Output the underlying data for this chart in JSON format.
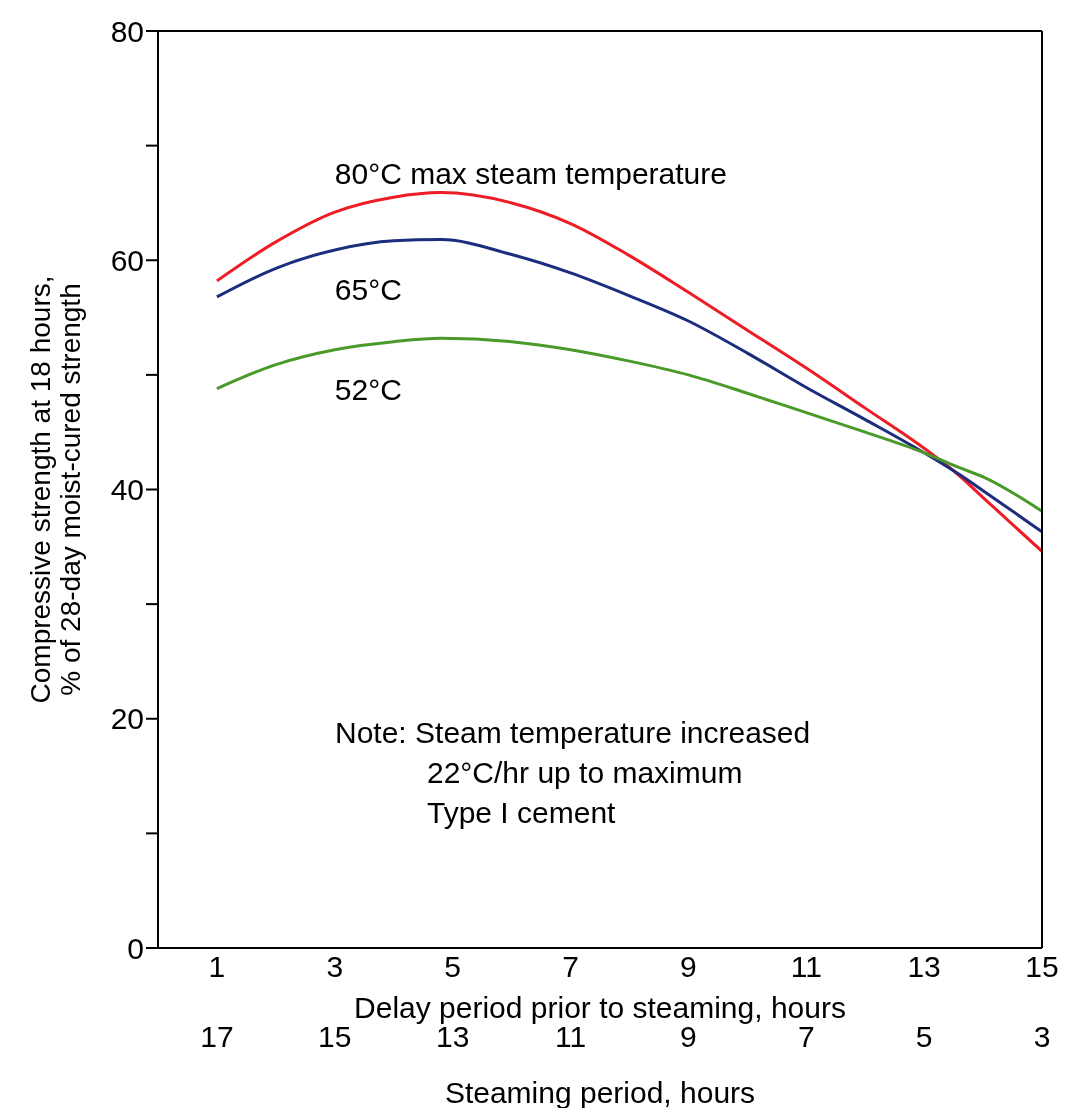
{
  "chart_data": {
    "type": "line",
    "xlabel": "Delay period prior to steaming, hours",
    "ylabel": "Compressive strength at 18 hours,\n% of 28-day moist-cured strength",
    "x2label": "Steaming period, hours",
    "x": [
      1,
      2,
      3,
      4,
      4.8,
      6,
      7,
      8,
      9,
      10,
      11,
      12,
      13,
      13.6,
      14,
      15
    ],
    "series": [
      {
        "name": "80°C max steam temperature",
        "color": "#ee1c25",
        "values": [
          58.2,
          61.6,
          64.2,
          65.5,
          65.9,
          65.0,
          63.2,
          60.4,
          57.2,
          53.9,
          50.6,
          47.1,
          43.6,
          41.2,
          39.3,
          34.6
        ]
      },
      {
        "name": "65°C",
        "color": "#1b2d7d",
        "values": [
          56.8,
          59.3,
          60.9,
          61.7,
          61.8,
          60.5,
          58.9,
          56.9,
          54.7,
          51.9,
          48.9,
          46.1,
          43.2,
          41.3,
          39.9,
          36.3
        ]
      },
      {
        "name": "52°C",
        "color": "#4a9a2a",
        "values": [
          48.8,
          50.9,
          52.2,
          52.9,
          53.2,
          52.9,
          52.2,
          51.2,
          50.0,
          48.4,
          46.7,
          45.0,
          43.2,
          41.9,
          41.1,
          38.1
        ]
      }
    ],
    "xlim": [
      0,
      15
    ],
    "xticks": [
      1,
      3,
      5,
      7,
      9,
      11,
      13,
      15
    ],
    "x2lim": [
      18,
      3
    ],
    "x2ticks": [
      17,
      15,
      13,
      11,
      9,
      7,
      5,
      3
    ],
    "ylim": [
      0,
      80
    ],
    "yticks": [
      0,
      {
        "value": 10,
        "label": null
      },
      20,
      {
        "value": 30,
        "label": null
      },
      40,
      {
        "value": 50,
        "label": null
      },
      60,
      {
        "value": 70,
        "label": null
      },
      80
    ],
    "grid": false,
    "legend": false,
    "annotations": [
      "Note: Steam temperature increased",
      "22°C/hr up to maximum",
      "Type I cement"
    ]
  }
}
